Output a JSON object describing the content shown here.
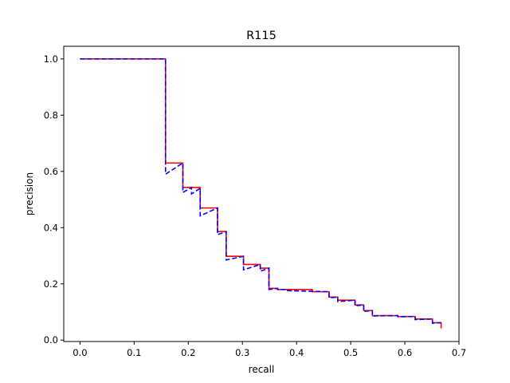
{
  "chart_data": {
    "type": "line",
    "title": "R115",
    "xlabel": "recall",
    "ylabel": "precision",
    "xlim": [
      -0.03,
      0.7
    ],
    "ylim": [
      -0.005,
      1.045
    ],
    "xticks": [
      "0.0",
      "0.1",
      "0.2",
      "0.3",
      "0.4",
      "0.5",
      "0.6",
      "0.7"
    ],
    "yticks": [
      "0.0",
      "0.2",
      "0.4",
      "0.6",
      "0.8",
      "1.0"
    ],
    "grid": false,
    "series": [
      {
        "color": "#ff0000",
        "style": "solid",
        "x": [
          0.0,
          0.158,
          0.158,
          0.19,
          0.19,
          0.222,
          0.222,
          0.254,
          0.254,
          0.27,
          0.27,
          0.302,
          0.302,
          0.333,
          0.333,
          0.349,
          0.349,
          0.365,
          0.365,
          0.429,
          0.429,
          0.46,
          0.46,
          0.476,
          0.476,
          0.508,
          0.508,
          0.524,
          0.524,
          0.54,
          0.54,
          0.587,
          0.587,
          0.619,
          0.619,
          0.651,
          0.651,
          0.667,
          0.667
        ],
        "y": [
          1.0,
          1.0,
          0.63,
          0.63,
          0.543,
          0.543,
          0.47,
          0.47,
          0.386,
          0.386,
          0.298,
          0.298,
          0.269,
          0.269,
          0.256,
          0.256,
          0.184,
          0.184,
          0.18,
          0.18,
          0.172,
          0.172,
          0.153,
          0.153,
          0.142,
          0.142,
          0.125,
          0.125,
          0.105,
          0.105,
          0.087,
          0.087,
          0.084,
          0.084,
          0.075,
          0.075,
          0.062,
          0.062,
          0.042
        ]
      },
      {
        "color": "#0000ff",
        "style": "dashed",
        "x": [
          0.0,
          0.158,
          0.158,
          0.19,
          0.19,
          0.206,
          0.206,
          0.222,
          0.222,
          0.254,
          0.254,
          0.27,
          0.27,
          0.302,
          0.302,
          0.333,
          0.333,
          0.349,
          0.349,
          0.365,
          0.365,
          0.381,
          0.381,
          0.46,
          0.46,
          0.476,
          0.476,
          0.508,
          0.508,
          0.524,
          0.524,
          0.54,
          0.54,
          0.587,
          0.587,
          0.619,
          0.619,
          0.651,
          0.651,
          0.667
        ],
        "y": [
          1.0,
          1.0,
          0.59,
          0.63,
          0.525,
          0.543,
          0.52,
          0.54,
          0.442,
          0.47,
          0.375,
          0.386,
          0.285,
          0.298,
          0.25,
          0.269,
          0.245,
          0.256,
          0.18,
          0.184,
          0.18,
          0.18,
          0.176,
          0.172,
          0.15,
          0.153,
          0.137,
          0.142,
          0.122,
          0.125,
          0.102,
          0.105,
          0.086,
          0.087,
          0.083,
          0.084,
          0.073,
          0.075,
          0.06,
          0.062
        ]
      }
    ]
  }
}
